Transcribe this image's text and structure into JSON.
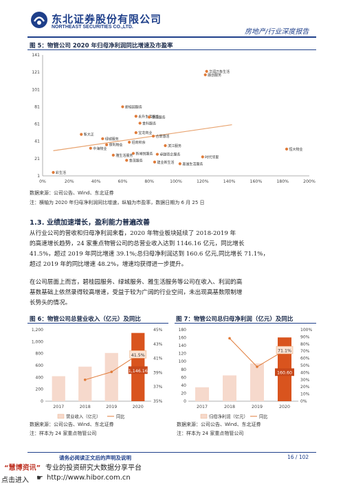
{
  "header": {
    "company_cn": "东北证券股份有限公司",
    "company_en": "NORTHEAST SECURITIES CO.,LTD.",
    "report_type": "房地产/行业深度报告",
    "colors": {
      "brand": "#1e3f8a",
      "accent_red": "#c0392b",
      "header_rule": "#1e3f8a"
    }
  },
  "figure5": {
    "title": "图 5：物管公司 2020 年归母净利润同比增速及市盈率",
    "source": "数据来源：公司公告、Wind、东北证券",
    "note": "注：横轴为 2020 年归母净利润同比增速，纵轴为市盈率，数据日期为 6 月 25 日",
    "chart_data": {
      "type": "scatter",
      "xlim": [
        0,
        200
      ],
      "ylim": [
        1,
        141
      ],
      "x_ticks": [
        "0%",
        "20%",
        "40%",
        "60%",
        "80%",
        "100%",
        "120%",
        "140%",
        "160%",
        "180%",
        "200%"
      ],
      "y_ticks": [
        "1",
        "21",
        "41",
        "61",
        "81",
        "101",
        "121",
        "141"
      ],
      "trendline": true,
      "grid": false,
      "points": [
        {
          "label": "华润万象生活",
          "x": 123,
          "y": 122
        },
        {
          "label": "融创服务",
          "x": 122,
          "y": 118
        },
        {
          "label": "碧桂园服务",
          "x": 60,
          "y": 81
        },
        {
          "label": "永升生活服务",
          "x": 70,
          "y": 70
        },
        {
          "label": "世茂服务",
          "x": 80,
          "y": 69
        },
        {
          "label": "金科服务",
          "x": 73,
          "y": 62
        },
        {
          "label": "新大正",
          "x": 29,
          "y": 49
        },
        {
          "label": "宝龙商业",
          "x": 70,
          "y": 51
        },
        {
          "label": "合景悠活",
          "x": 83,
          "y": 47
        },
        {
          "label": "绿城服务",
          "x": 45,
          "y": 44
        },
        {
          "label": "招商积余",
          "x": 65,
          "y": 40
        },
        {
          "label": "保利物业",
          "x": 48,
          "y": 37
        },
        {
          "label": "滨江服务",
          "x": 92,
          "y": 36
        },
        {
          "label": "中海物业",
          "x": 36,
          "y": 33
        },
        {
          "label": "新城悦服务",
          "x": 68,
          "y": 27
        },
        {
          "label": "卓越商企服务",
          "x": 86,
          "y": 26
        },
        {
          "label": "雅生活服务",
          "x": 53,
          "y": 25
        },
        {
          "label": "时代邻里",
          "x": 120,
          "y": 23
        },
        {
          "label": "金茂服务",
          "x": 63,
          "y": 19
        },
        {
          "label": "建业新生活",
          "x": 84,
          "y": 17
        },
        {
          "label": "嘉诚生活服务",
          "x": 103,
          "y": 15
        },
        {
          "label": "恒大物业",
          "x": 183,
          "y": 32
        },
        {
          "label": "彩生活",
          "x": 8,
          "y": 5
        }
      ]
    }
  },
  "section": {
    "heading": "1.3. 业绩加速增长，盈利能力普遍改善",
    "para1": [
      "从行业公司的营收和归母净利润来看，2020 年物业板块延续了 2018-2019 年",
      "的高速增长趋势，24 家重点物管公司的总营业收入达到 1146.16 亿元，同比增长",
      "41.5%，超过 2019 年同比增速 39.1%;总归母净利润达到 160.6 亿元,同比增长 71.1%，",
      "超过 2019 年的同比增速 48.2%，增速均获得进一步提升。"
    ],
    "para2": [
      "在公司层面上而言，碧桂园服务、绿城服务、雅生活服务等公司在收入、利润的高",
      "基数基础上依然录得较高增速，受益于较为广阔的行业空间，未出现高基数限制增",
      "长势头的情况。"
    ]
  },
  "figure6": {
    "title": "图 6：物管公司总营业收入（亿元）及同比",
    "source": "数据来源：公司公告、Wind、东北证券",
    "note": "注：样本为 24 家重点物管公司",
    "chart_data": {
      "type": "bar",
      "categories": [
        "2017",
        "2018",
        "2019",
        "2020"
      ],
      "series": [
        {
          "name": "营业收入（亿元）",
          "type": "bar",
          "values": [
            420,
            580,
            810,
            1146.16
          ],
          "axis": "left",
          "color": "#f6d9cc",
          "highlight_color": "#d9541e"
        },
        {
          "name": "同比",
          "type": "line",
          "values": [
            null,
            38.0,
            39.1,
            41.5
          ],
          "axis": "right",
          "color": "#e07b39"
        }
      ],
      "left_ylim": [
        0,
        1200
      ],
      "left_ticks": [
        "0",
        "200",
        "400",
        "600",
        "800",
        "1,000",
        "1,200"
      ],
      "right_ylim": [
        35,
        45
      ],
      "right_ticks": [
        "35%",
        "37%",
        "39%",
        "41%",
        "43%",
        "45%"
      ],
      "data_labels": [
        "41.5%",
        "1,146.16"
      ]
    }
  },
  "figure7": {
    "title": "图 7：物管公司总归母净利润（亿元）及同比",
    "source": "数据来源：公司公告、Wind、东北证券",
    "note": "注：样本为 24 家重点物管公司",
    "chart_data": {
      "type": "bar",
      "categories": [
        "2017",
        "2018",
        "2019",
        "2020"
      ],
      "series": [
        {
          "name": "归母净利润（亿元）",
          "type": "bar",
          "values": [
            35,
            65,
            95,
            160.6
          ],
          "axis": "left",
          "color": "#f6d9cc",
          "highlight_color": "#d9541e"
        },
        {
          "name": "同比",
          "type": "line",
          "values": [
            null,
            88.0,
            48.2,
            71.1
          ],
          "axis": "right",
          "color": "#e07b39"
        }
      ],
      "left_ylim": [
        0,
        180
      ],
      "left_ticks": [
        "0",
        "20",
        "40",
        "60",
        "80",
        "100",
        "120",
        "140",
        "160",
        "180"
      ],
      "right_ylim": [
        0,
        100
      ],
      "right_ticks": [
        "0%",
        "10%",
        "20%",
        "30%",
        "40%",
        "50%",
        "60%",
        "70%",
        "80%",
        "90%",
        "100%"
      ],
      "data_labels": [
        "71.1%",
        "160.60"
      ]
    }
  },
  "footer": {
    "disclaimer": "请务必阅读正文后的声明及说明",
    "page": "16 / 102",
    "ad_brand": "“慧博资讯”",
    "ad_text": "专业的投资研究大数据分享平台",
    "ad_link_label": "点击进入",
    "ad_url": "http://www.hibor.com.cn"
  }
}
